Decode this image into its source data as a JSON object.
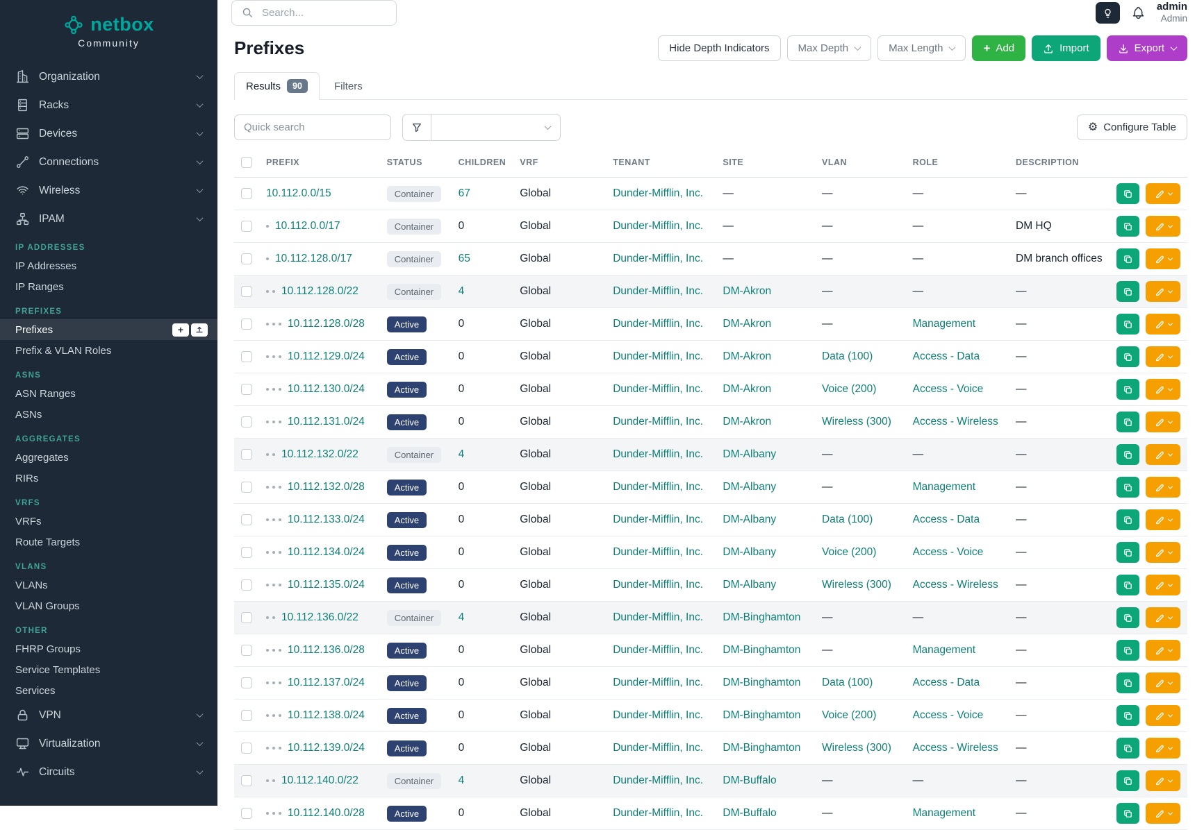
{
  "brand": {
    "name": "netbox",
    "edition": "Community"
  },
  "sidebar": {
    "nav_items": [
      {
        "label": "Organization"
      },
      {
        "label": "Racks"
      },
      {
        "label": "Devices"
      },
      {
        "label": "Connections"
      },
      {
        "label": "Wireless"
      },
      {
        "label": "IPAM"
      }
    ],
    "ipam_sections": [
      {
        "header": "IP ADDRESSES",
        "items": [
          {
            "label": "IP Addresses"
          },
          {
            "label": "IP Ranges"
          }
        ]
      },
      {
        "header": "PREFIXES",
        "items": [
          {
            "label": "Prefixes",
            "active": true
          },
          {
            "label": "Prefix & VLAN Roles"
          }
        ]
      },
      {
        "header": "ASNS",
        "items": [
          {
            "label": "ASN Ranges"
          },
          {
            "label": "ASNs"
          }
        ]
      },
      {
        "header": "AGGREGATES",
        "items": [
          {
            "label": "Aggregates"
          },
          {
            "label": "RIRs"
          }
        ]
      },
      {
        "header": "VRFS",
        "items": [
          {
            "label": "VRFs"
          },
          {
            "label": "Route Targets"
          }
        ]
      },
      {
        "header": "VLANS",
        "items": [
          {
            "label": "VLANs"
          },
          {
            "label": "VLAN Groups"
          }
        ]
      },
      {
        "header": "OTHER",
        "items": [
          {
            "label": "FHRP Groups"
          },
          {
            "label": "Service Templates"
          },
          {
            "label": "Services"
          }
        ]
      }
    ],
    "bottom_items": [
      {
        "label": "VPN"
      },
      {
        "label": "Virtualization"
      },
      {
        "label": "Circuits"
      }
    ]
  },
  "topbar": {
    "search_placeholder": "Search...",
    "user_name": "admin",
    "user_role": "Admin"
  },
  "page": {
    "title": "Prefixes",
    "controls": {
      "hide_depth": "Hide Depth Indicators",
      "max_depth": "Max Depth",
      "max_length": "Max Length",
      "add": "Add",
      "import": "Import",
      "export": "Export",
      "configure_table": "Configure Table"
    },
    "tabs": {
      "results_label": "Results",
      "results_count": "90",
      "filters_label": "Filters"
    },
    "quick_search_placeholder": "Quick search"
  },
  "table": {
    "columns": [
      "PREFIX",
      "STATUS",
      "CHILDREN",
      "VRF",
      "TENANT",
      "SITE",
      "VLAN",
      "ROLE",
      "DESCRIPTION"
    ],
    "rows": [
      {
        "prefix": "10.112.0.0/15",
        "depth": 0,
        "status": "Container",
        "children": "67",
        "vrf": "Global",
        "tenant": "Dunder-Mifflin, Inc.",
        "site": "—",
        "vlan": "—",
        "role": "—",
        "description": "—"
      },
      {
        "prefix": "10.112.0.0/17",
        "depth": 1,
        "status": "Container",
        "children": "0",
        "vrf": "Global",
        "tenant": "Dunder-Mifflin, Inc.",
        "site": "—",
        "vlan": "—",
        "role": "—",
        "description": "DM HQ"
      },
      {
        "prefix": "10.112.128.0/17",
        "depth": 1,
        "status": "Container",
        "children": "65",
        "vrf": "Global",
        "tenant": "Dunder-Mifflin, Inc.",
        "site": "—",
        "vlan": "—",
        "role": "—",
        "description": "DM branch offices"
      },
      {
        "prefix": "10.112.128.0/22",
        "depth": 2,
        "status": "Container",
        "children": "4",
        "vrf": "Global",
        "tenant": "Dunder-Mifflin, Inc.",
        "site": "DM-Akron",
        "vlan": "—",
        "role": "—",
        "description": "—",
        "shaded": true
      },
      {
        "prefix": "10.112.128.0/28",
        "depth": 3,
        "status": "Active",
        "children": "0",
        "vrf": "Global",
        "tenant": "Dunder-Mifflin, Inc.",
        "site": "DM-Akron",
        "vlan": "—",
        "role": "Management",
        "description": "—"
      },
      {
        "prefix": "10.112.129.0/24",
        "depth": 3,
        "status": "Active",
        "children": "0",
        "vrf": "Global",
        "tenant": "Dunder-Mifflin, Inc.",
        "site": "DM-Akron",
        "vlan": "Data (100)",
        "role": "Access - Data",
        "description": "—"
      },
      {
        "prefix": "10.112.130.0/24",
        "depth": 3,
        "status": "Active",
        "children": "0",
        "vrf": "Global",
        "tenant": "Dunder-Mifflin, Inc.",
        "site": "DM-Akron",
        "vlan": "Voice (200)",
        "role": "Access - Voice",
        "description": "—"
      },
      {
        "prefix": "10.112.131.0/24",
        "depth": 3,
        "status": "Active",
        "children": "0",
        "vrf": "Global",
        "tenant": "Dunder-Mifflin, Inc.",
        "site": "DM-Akron",
        "vlan": "Wireless (300)",
        "role": "Access - Wireless",
        "description": "—"
      },
      {
        "prefix": "10.112.132.0/22",
        "depth": 2,
        "status": "Container",
        "children": "4",
        "vrf": "Global",
        "tenant": "Dunder-Mifflin, Inc.",
        "site": "DM-Albany",
        "vlan": "—",
        "role": "—",
        "description": "—",
        "shaded": true
      },
      {
        "prefix": "10.112.132.0/28",
        "depth": 3,
        "status": "Active",
        "children": "0",
        "vrf": "Global",
        "tenant": "Dunder-Mifflin, Inc.",
        "site": "DM-Albany",
        "vlan": "—",
        "role": "Management",
        "description": "—"
      },
      {
        "prefix": "10.112.133.0/24",
        "depth": 3,
        "status": "Active",
        "children": "0",
        "vrf": "Global",
        "tenant": "Dunder-Mifflin, Inc.",
        "site": "DM-Albany",
        "vlan": "Data (100)",
        "role": "Access - Data",
        "description": "—"
      },
      {
        "prefix": "10.112.134.0/24",
        "depth": 3,
        "status": "Active",
        "children": "0",
        "vrf": "Global",
        "tenant": "Dunder-Mifflin, Inc.",
        "site": "DM-Albany",
        "vlan": "Voice (200)",
        "role": "Access - Voice",
        "description": "—"
      },
      {
        "prefix": "10.112.135.0/24",
        "depth": 3,
        "status": "Active",
        "children": "0",
        "vrf": "Global",
        "tenant": "Dunder-Mifflin, Inc.",
        "site": "DM-Albany",
        "vlan": "Wireless (300)",
        "role": "Access - Wireless",
        "description": "—"
      },
      {
        "prefix": "10.112.136.0/22",
        "depth": 2,
        "status": "Container",
        "children": "4",
        "vrf": "Global",
        "tenant": "Dunder-Mifflin, Inc.",
        "site": "DM-Binghamton",
        "vlan": "—",
        "role": "—",
        "description": "—",
        "shaded": true
      },
      {
        "prefix": "10.112.136.0/28",
        "depth": 3,
        "status": "Active",
        "children": "0",
        "vrf": "Global",
        "tenant": "Dunder-Mifflin, Inc.",
        "site": "DM-Binghamton",
        "vlan": "—",
        "role": "Management",
        "description": "—"
      },
      {
        "prefix": "10.112.137.0/24",
        "depth": 3,
        "status": "Active",
        "children": "0",
        "vrf": "Global",
        "tenant": "Dunder-Mifflin, Inc.",
        "site": "DM-Binghamton",
        "vlan": "Data (100)",
        "role": "Access - Data",
        "description": "—"
      },
      {
        "prefix": "10.112.138.0/24",
        "depth": 3,
        "status": "Active",
        "children": "0",
        "vrf": "Global",
        "tenant": "Dunder-Mifflin, Inc.",
        "site": "DM-Binghamton",
        "vlan": "Voice (200)",
        "role": "Access - Voice",
        "description": "—"
      },
      {
        "prefix": "10.112.139.0/24",
        "depth": 3,
        "status": "Active",
        "children": "0",
        "vrf": "Global",
        "tenant": "Dunder-Mifflin, Inc.",
        "site": "DM-Binghamton",
        "vlan": "Wireless (300)",
        "role": "Access - Wireless",
        "description": "—"
      },
      {
        "prefix": "10.112.140.0/22",
        "depth": 2,
        "status": "Container",
        "children": "4",
        "vrf": "Global",
        "tenant": "Dunder-Mifflin, Inc.",
        "site": "DM-Buffalo",
        "vlan": "—",
        "role": "—",
        "description": "—",
        "shaded": true
      },
      {
        "prefix": "10.112.140.0/28",
        "depth": 3,
        "status": "Active",
        "children": "0",
        "vrf": "Global",
        "tenant": "Dunder-Mifflin, Inc.",
        "site": "DM-Buffalo",
        "vlan": "—",
        "role": "Management",
        "description": "—"
      }
    ]
  }
}
